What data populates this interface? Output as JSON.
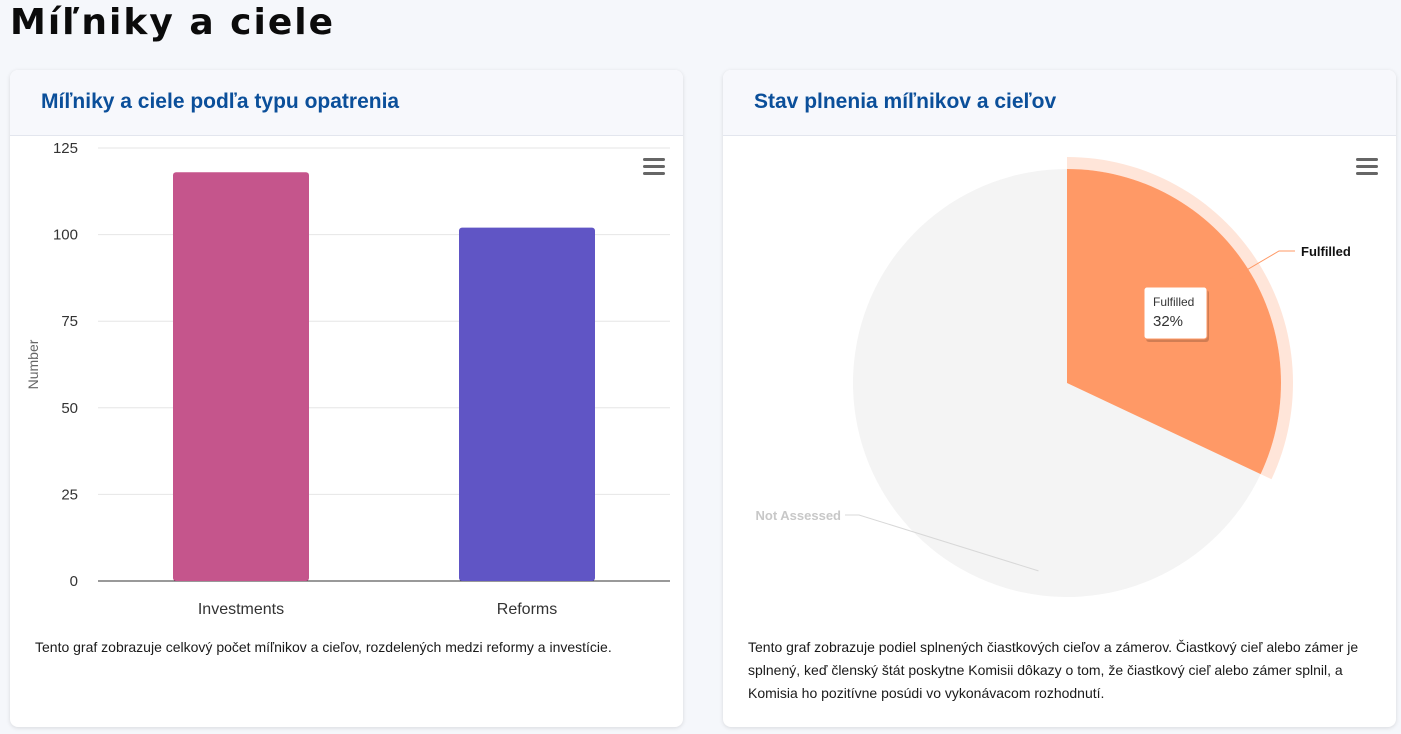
{
  "page": {
    "title": "Míľniky a ciele"
  },
  "left_card": {
    "title": "Míľniky a ciele podľa typu opatrenia",
    "caption": "Tento graf zobrazuje celkový počet míľnikov a cieľov, rozdelených medzi reformy a investície."
  },
  "right_card": {
    "title": "Stav plnenia míľnikov a cieľov",
    "caption": "Tento graf zobrazuje podiel splnených čiastkových cieľov a zámerov. Čiastkový cieľ alebo zámer je splnený, keď členský štát poskytne Komisii dôkazy o tom, že čiastkový cieľ alebo zámer splnil, a Komisia ho pozitívne posúdi vo vykonávacom rozhodnutí."
  },
  "icons": {
    "menu": "hamburger-menu-icon"
  },
  "chart_data": [
    {
      "type": "bar",
      "categories": [
        "Investments",
        "Reforms"
      ],
      "values": [
        118,
        102
      ],
      "colors": [
        "#c5558c",
        "#6055c5"
      ],
      "xlabel": "",
      "ylabel": "Number",
      "ylim": [
        0,
        125
      ],
      "yticks": [
        0,
        25,
        50,
        75,
        100,
        125
      ],
      "grid": true
    },
    {
      "type": "pie",
      "labels": [
        "Fulfilled",
        "Not Assessed"
      ],
      "values": [
        32,
        68
      ],
      "colors": [
        "#ff9966",
        "#f4f4f4"
      ],
      "data_labels": [
        "Fulfilled",
        "Not Assessed"
      ],
      "tooltip": {
        "label": "Fulfilled",
        "value": "32%"
      }
    }
  ]
}
